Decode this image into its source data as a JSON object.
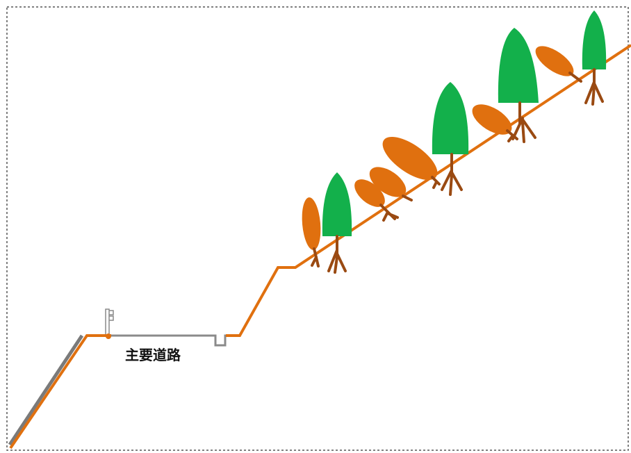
{
  "labels": {
    "road": "主要道路"
  }
}
